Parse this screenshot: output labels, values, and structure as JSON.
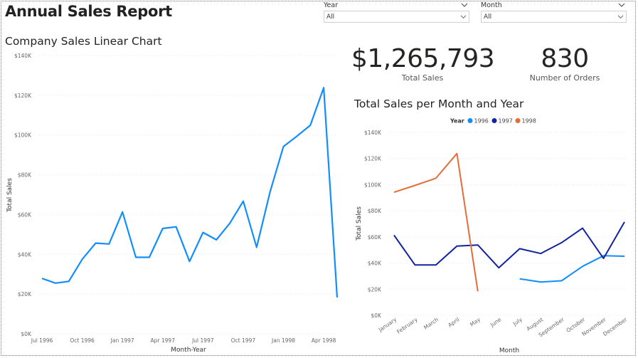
{
  "report_title": "Annual Sales Report",
  "slicers": {
    "year": {
      "label": "Year",
      "value": "All"
    },
    "month": {
      "label": "Month",
      "value": "All"
    }
  },
  "kpis": {
    "total_sales": {
      "value": "$1,265,793",
      "label": "Total Sales"
    },
    "orders": {
      "value": "830",
      "label": "Number of Orders"
    }
  },
  "colors": {
    "line_1996": "#118DFF",
    "line_1997": "#12239E",
    "line_1998": "#E66C37",
    "main_line": "#118DFF"
  },
  "chart_data": [
    {
      "type": "line",
      "title": "Company Sales Linear Chart",
      "xlabel": "Month-Year",
      "ylabel": "Total Sales",
      "ylim": [
        0,
        140000
      ],
      "yticks": [
        "$0K",
        "$20K",
        "$40K",
        "$60K",
        "$80K",
        "$100K",
        "$120K",
        "$140K"
      ],
      "grid": true,
      "x": [
        "Jul 1996",
        "Aug 1996",
        "Sep 1996",
        "Oct 1996",
        "Nov 1996",
        "Dec 1996",
        "Jan 1997",
        "Feb 1997",
        "Mar 1997",
        "Apr 1997",
        "May 1997",
        "Jun 1997",
        "Jul 1997",
        "Aug 1997",
        "Sep 1997",
        "Oct 1997",
        "Nov 1997",
        "Dec 1997",
        "Jan 1998",
        "Feb 1998",
        "Mar 1998",
        "Apr 1998",
        "May 1998"
      ],
      "xtick_labels": [
        "Jul 1996",
        "Oct 1996",
        "Jan 1997",
        "Apr 1997",
        "Jul 1997",
        "Oct 1997",
        "Jan 1998",
        "Apr 1998"
      ],
      "series": [
        {
          "values": [
            27900,
            25500,
            26400,
            37500,
            45600,
            45200,
            61300,
            38500,
            38500,
            53000,
            53800,
            36400,
            51000,
            47300,
            55600,
            66700,
            43500,
            71400,
            94200,
            99400,
            104900,
            123800,
            18300
          ]
        }
      ]
    },
    {
      "type": "line",
      "title": "Total Sales per Month and Year",
      "xlabel": "Month",
      "ylabel": "Total Sales",
      "ylim": [
        0,
        140000
      ],
      "yticks": [
        "$0K",
        "$20K",
        "$40K",
        "$60K",
        "$80K",
        "$100K",
        "$120K",
        "$140K"
      ],
      "grid": true,
      "legend_title": "Year",
      "legend_position": "top",
      "categories": [
        "January",
        "February",
        "March",
        "April",
        "May",
        "June",
        "July",
        "August",
        "September",
        "October",
        "November",
        "December"
      ],
      "series": [
        {
          "name": "1996",
          "values": [
            null,
            null,
            null,
            null,
            null,
            null,
            27900,
            25500,
            26400,
            37500,
            45600,
            45200
          ]
        },
        {
          "name": "1997",
          "values": [
            61300,
            38500,
            38500,
            53000,
            53800,
            36400,
            51000,
            47300,
            55600,
            66700,
            43500,
            71400
          ]
        },
        {
          "name": "1998",
          "values": [
            94200,
            99400,
            104900,
            123800,
            18300,
            null,
            null,
            null,
            null,
            null,
            null,
            null
          ]
        }
      ]
    }
  ]
}
